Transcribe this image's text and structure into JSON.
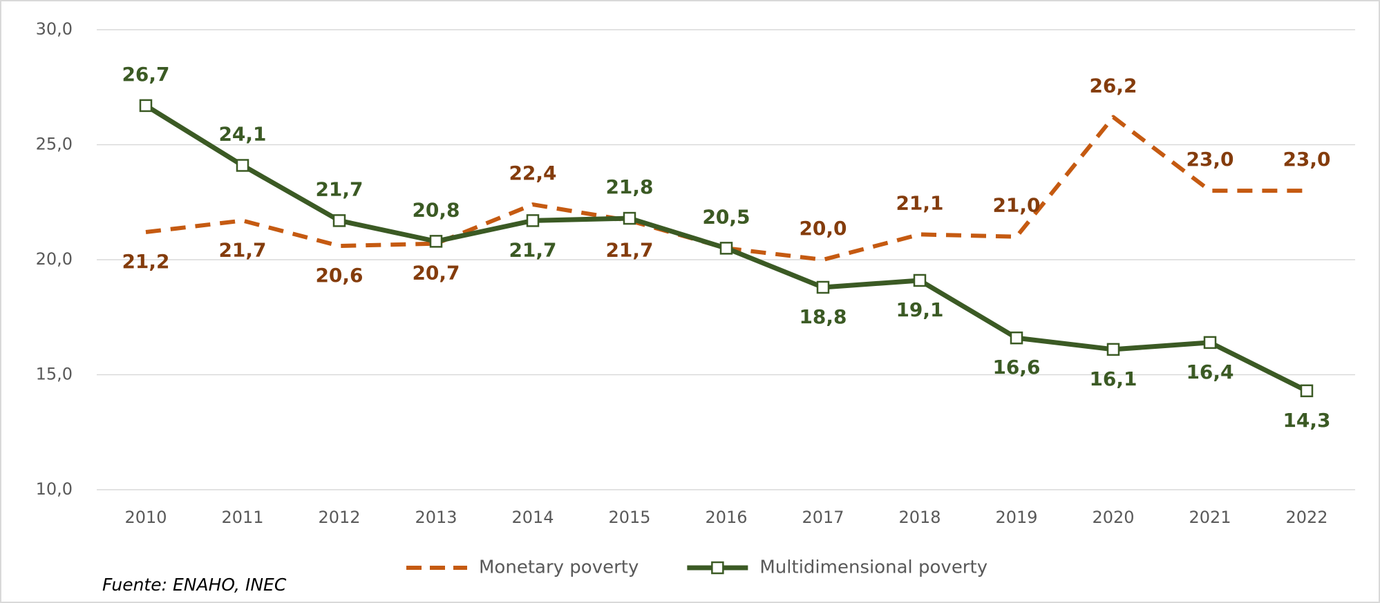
{
  "chart_data": {
    "type": "line",
    "categories": [
      "2010",
      "2011",
      "2012",
      "2013",
      "2014",
      "2015",
      "2016",
      "2017",
      "2018",
      "2019",
      "2020",
      "2021",
      "2022"
    ],
    "series": [
      {
        "name": "Monetary poverty",
        "color": "#c55a11",
        "label_color": "#843c0c",
        "dashed": true,
        "values": [
          21.2,
          21.7,
          20.6,
          20.7,
          22.4,
          21.7,
          20.5,
          20.0,
          21.1,
          21.0,
          26.2,
          23.0,
          23.0
        ],
        "value_labels": [
          "21,2",
          "21,7",
          "20,6",
          "20,7",
          "22,4",
          "21,7",
          "20,5",
          "20,0",
          "21,1",
          "21,0",
          "26,2",
          "23,0",
          "23,0"
        ]
      },
      {
        "name": "Multidimensional poverty",
        "color": "#3b5a24",
        "label_color": "#3b5a24",
        "markers": true,
        "values": [
          26.7,
          24.1,
          21.7,
          20.8,
          21.7,
          21.8,
          20.5,
          18.8,
          19.1,
          16.6,
          16.1,
          16.4,
          14.3
        ],
        "value_labels": [
          "26,7",
          "24,1",
          "21,7",
          "20,8",
          "21,7",
          "21,8",
          "20,5",
          "18,8",
          "19,1",
          "16,6",
          "16,1",
          "16,4",
          "14,3"
        ]
      }
    ],
    "ylim": [
      10,
      30
    ],
    "yticks": [
      {
        "value": 10,
        "label": "10,0"
      },
      {
        "value": 15,
        "label": "15,0"
      },
      {
        "value": 20,
        "label": "20,0"
      },
      {
        "value": 25,
        "label": "25,0"
      },
      {
        "value": 30,
        "label": "30,0"
      }
    ],
    "grid": true,
    "legend": "bottom",
    "source": "Fuente: ENAHO, INEC"
  }
}
